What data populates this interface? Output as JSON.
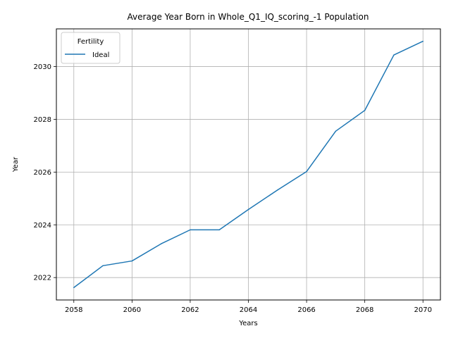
{
  "chart_data": {
    "type": "line",
    "title": "Average Year Born in Whole_Q1_IQ_scoring_-1 Population",
    "xlabel": "Years",
    "ylabel": "Year",
    "x": [
      2058,
      2059,
      2060,
      2061,
      2062,
      2063,
      2064,
      2065,
      2066,
      2067,
      2068,
      2069,
      2070
    ],
    "series": [
      {
        "name": "Ideal",
        "color": "#1f77b4",
        "values": [
          2021.62,
          2022.45,
          2022.63,
          2023.28,
          2023.81,
          2023.81,
          2024.58,
          2025.32,
          2026.02,
          2027.55,
          2028.34,
          2030.44,
          2030.96
        ]
      }
    ],
    "xlim": [
      2057.4,
      2070.6
    ],
    "ylim": [
      2021.15,
      2031.43
    ],
    "xticks": [
      "2058",
      "2060",
      "2062",
      "2064",
      "2066",
      "2068",
      "2070"
    ],
    "yticks": [
      "2022",
      "2024",
      "2026",
      "2028",
      "2030"
    ],
    "grid": true,
    "legend": {
      "title": "Fertility",
      "placement": "top-left"
    }
  }
}
